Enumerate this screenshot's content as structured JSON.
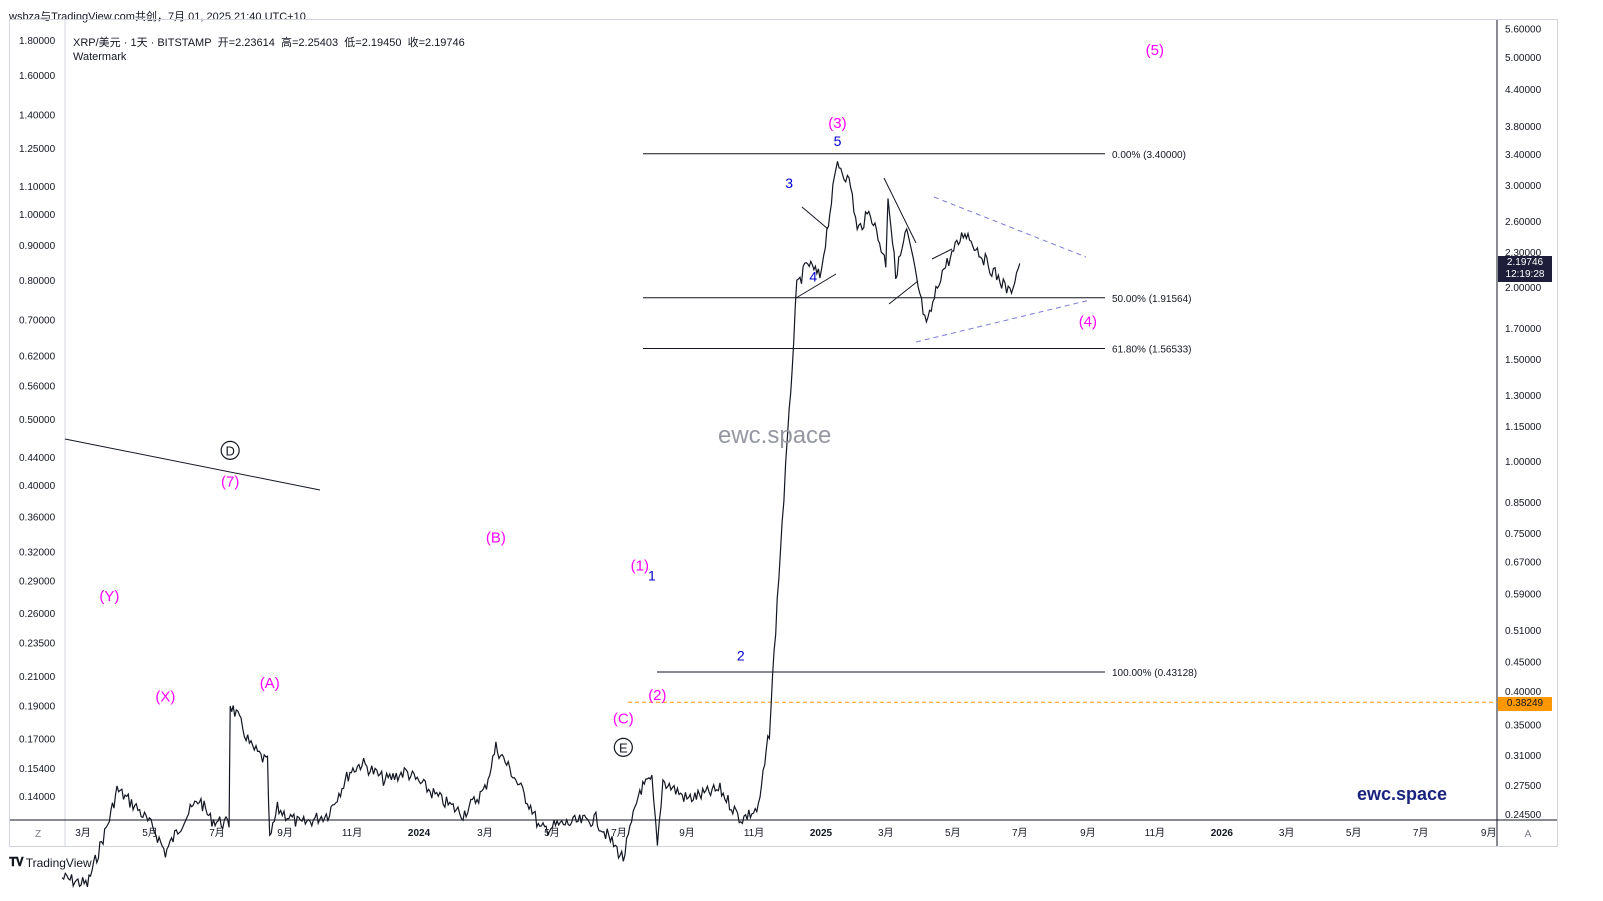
{
  "header": {
    "title": "wsbza与TradingView.com共创，7月 01, 2025 21:40 UTC+10"
  },
  "legend": {
    "symbol": "XRP/美元 · 1天 · BITSTAMP",
    "open": "开=2.23614",
    "high": "高=2.25403",
    "low": "低=2.19450",
    "close": "收=2.19746",
    "watermark_label": "Watermark"
  },
  "watermarks": {
    "center": "ewc.space",
    "corner": "ewc.space"
  },
  "footer": {
    "brand": "TradingView"
  },
  "colors": {
    "wave": "#ff00ff",
    "minor": "#0000cc",
    "price": "#131722",
    "level": "#ff9800",
    "triangle": "#7b7bd9"
  },
  "chart_data": {
    "type": "candlestick",
    "title": "",
    "y_scale": "log",
    "left_ticks": [
      "1.80000",
      "1.60000",
      "1.40000",
      "1.25000",
      "1.10000",
      "1.00000",
      "0.90000",
      "0.80000",
      "0.70000",
      "0.62000",
      "0.56000",
      "0.50000",
      "0.44000",
      "0.40000",
      "0.36000",
      "0.32000",
      "0.29000",
      "0.26000",
      "0.23500",
      "0.21000",
      "0.19000",
      "0.17000",
      "0.15400",
      "0.14000"
    ],
    "left_tick_values": [
      1.8,
      1.6,
      1.4,
      1.25,
      1.1,
      1.0,
      0.9,
      0.8,
      0.7,
      0.62,
      0.56,
      0.5,
      0.44,
      0.4,
      0.36,
      0.32,
      0.29,
      0.26,
      0.235,
      0.21,
      0.19,
      0.17,
      0.154,
      0.14
    ],
    "right_ticks": [
      "5.60000",
      "5.00000",
      "4.40000",
      "3.80000",
      "3.40000",
      "3.00000",
      "2.60000",
      "2.30000",
      "2.00000",
      "1.70000",
      "1.50000",
      "1.30000",
      "1.15000",
      "1.00000",
      "0.85000",
      "0.75000",
      "0.67000",
      "0.59000",
      "0.51000",
      "0.45000",
      "0.40000",
      "0.35000",
      "0.31000",
      "0.27500",
      "0.24500"
    ],
    "right_tick_values": [
      5.6,
      5.0,
      4.4,
      3.8,
      3.4,
      3.0,
      2.6,
      2.3,
      2.0,
      1.7,
      1.5,
      1.3,
      1.15,
      1.0,
      0.85,
      0.75,
      0.67,
      0.59,
      0.51,
      0.45,
      0.4,
      0.35,
      0.31,
      0.275,
      0.245
    ],
    "x_ticks": [
      "3月",
      "5月",
      "7月",
      "9月",
      "11月",
      "2024",
      "3月",
      "5月",
      "7月",
      "9月",
      "11月",
      "2025",
      "3月",
      "5月",
      "7月",
      "9月",
      "11月",
      "2026",
      "3月",
      "5月",
      "7月",
      "9月"
    ],
    "x_tick_dates": [
      "2023-03-01",
      "2023-05-01",
      "2023-07-01",
      "2023-09-01",
      "2023-11-01",
      "2024-01-01",
      "2024-03-01",
      "2024-05-01",
      "2024-07-01",
      "2024-09-01",
      "2024-11-01",
      "2025-01-01",
      "2025-03-01",
      "2025-05-01",
      "2025-07-01",
      "2025-09-01",
      "2025-11-01",
      "2026-01-01",
      "2026-03-01",
      "2026-05-01",
      "2026-07-01",
      "2026-09-01"
    ],
    "last_price": "2.19746",
    "countdown": "12:19:28",
    "level_price": "0.38249",
    "axis_buttons": {
      "left": "Z",
      "right": "A"
    },
    "fib_levels": [
      {
        "label": "0.00% (3.40000)",
        "value": 3.4
      },
      {
        "label": "50.00% (1.91564)",
        "value": 1.91564
      },
      {
        "label": "61.80% (1.56533)",
        "value": 1.56533
      },
      {
        "label": "100.00% (0.43128)",
        "value": 0.43128
      }
    ],
    "price_path": [
      {
        "date": "2023-02-10",
        "price": 0.19
      },
      {
        "date": "2023-03-05",
        "price": 0.185
      },
      {
        "date": "2023-03-25",
        "price": 0.24
      },
      {
        "date": "2023-04-01",
        "price": 0.27
      },
      {
        "date": "2023-04-20",
        "price": 0.25
      },
      {
        "date": "2023-05-05",
        "price": 0.23
      },
      {
        "date": "2023-05-15",
        "price": 0.21
      },
      {
        "date": "2023-06-01",
        "price": 0.24
      },
      {
        "date": "2023-06-15",
        "price": 0.26
      },
      {
        "date": "2023-06-25",
        "price": 0.24
      },
      {
        "date": "2023-07-12",
        "price": 0.235
      },
      {
        "date": "2023-07-13",
        "price": 0.38
      },
      {
        "date": "2023-07-20",
        "price": 0.36
      },
      {
        "date": "2023-08-01",
        "price": 0.32
      },
      {
        "date": "2023-08-16",
        "price": 0.3
      },
      {
        "date": "2023-08-18",
        "price": 0.22
      },
      {
        "date": "2023-08-25",
        "price": 0.25
      },
      {
        "date": "2023-09-15",
        "price": 0.235
      },
      {
        "date": "2023-10-10",
        "price": 0.245
      },
      {
        "date": "2023-10-30",
        "price": 0.29
      },
      {
        "date": "2023-11-10",
        "price": 0.3
      },
      {
        "date": "2023-12-01",
        "price": 0.28
      },
      {
        "date": "2023-12-20",
        "price": 0.29
      },
      {
        "date": "2024-01-20",
        "price": 0.26
      },
      {
        "date": "2024-02-10",
        "price": 0.245
      },
      {
        "date": "2024-03-01",
        "price": 0.27
      },
      {
        "date": "2024-03-11",
        "price": 0.32
      },
      {
        "date": "2024-03-25",
        "price": 0.29
      },
      {
        "date": "2024-04-13",
        "price": 0.25
      },
      {
        "date": "2024-04-20",
        "price": 0.23
      },
      {
        "date": "2024-05-10",
        "price": 0.235
      },
      {
        "date": "2024-06-10",
        "price": 0.24
      },
      {
        "date": "2024-07-05",
        "price": 0.205
      },
      {
        "date": "2024-07-20",
        "price": 0.27
      },
      {
        "date": "2024-07-31",
        "price": 0.28
      },
      {
        "date": "2024-08-05",
        "price": 0.215
      },
      {
        "date": "2024-08-10",
        "price": 0.28
      },
      {
        "date": "2024-09-01",
        "price": 0.26
      },
      {
        "date": "2024-10-01",
        "price": 0.27
      },
      {
        "date": "2024-10-20",
        "price": 0.24
      },
      {
        "date": "2024-11-05",
        "price": 0.25
      },
      {
        "date": "2024-11-15",
        "price": 0.34
      },
      {
        "date": "2024-11-25",
        "price": 0.7
      },
      {
        "date": "2024-12-03",
        "price": 1.2
      },
      {
        "date": "2024-12-10",
        "price": 2.0
      },
      {
        "date": "2024-12-20",
        "price": 2.2
      },
      {
        "date": "2024-12-31",
        "price": 2.08
      },
      {
        "date": "2025-01-05",
        "price": 2.4
      },
      {
        "date": "2025-01-16",
        "price": 3.3
      },
      {
        "date": "2025-01-28",
        "price": 3.0
      },
      {
        "date": "2025-02-03",
        "price": 2.5
      },
      {
        "date": "2025-02-15",
        "price": 2.7
      },
      {
        "date": "2025-03-01",
        "price": 2.2
      },
      {
        "date": "2025-03-03",
        "price": 2.9
      },
      {
        "date": "2025-03-10",
        "price": 2.1
      },
      {
        "date": "2025-03-20",
        "price": 2.5
      },
      {
        "date": "2025-04-07",
        "price": 1.7
      },
      {
        "date": "2025-04-20",
        "price": 2.1
      },
      {
        "date": "2025-05-12",
        "price": 2.5
      },
      {
        "date": "2025-06-01",
        "price": 2.2
      },
      {
        "date": "2025-06-22",
        "price": 1.95
      },
      {
        "date": "2025-07-01",
        "price": 2.19746
      }
    ],
    "wave_labels": [
      {
        "text": "(Y)",
        "date": "2023-03-25",
        "price": 0.275,
        "style": "major"
      },
      {
        "text": "(X)",
        "date": "2023-05-15",
        "price": 0.196,
        "style": "major"
      },
      {
        "text": "(7)",
        "date": "2023-07-13",
        "price": 0.405,
        "style": "major"
      },
      {
        "text": "D",
        "date": "2023-07-13",
        "price": 0.45,
        "style": "circle"
      },
      {
        "text": "(A)",
        "date": "2023-08-18",
        "price": 0.205,
        "style": "major"
      },
      {
        "text": "(B)",
        "date": "2024-03-11",
        "price": 0.335,
        "style": "major"
      },
      {
        "text": "(C)",
        "date": "2024-07-05",
        "price": 0.182,
        "style": "major"
      },
      {
        "text": "E",
        "date": "2024-07-05",
        "price": 0.165,
        "style": "circle"
      },
      {
        "text": "(1)",
        "date": "2024-07-20",
        "price": 0.305,
        "style": "major"
      },
      {
        "text": "1",
        "date": "2024-07-31",
        "price": 0.295,
        "style": "minor"
      },
      {
        "text": "(2)",
        "date": "2024-08-05",
        "price": 0.197,
        "style": "major"
      },
      {
        "text": "2",
        "date": "2024-10-20",
        "price": 0.225,
        "style": "minor"
      },
      {
        "text": "3",
        "date": "2024-12-03",
        "price": 1.11,
        "style": "minor"
      },
      {
        "text": "4",
        "date": "2024-12-25",
        "price": 0.81,
        "style": "minor"
      },
      {
        "text": "5",
        "date": "2025-01-16",
        "price": 1.28,
        "style": "minor"
      },
      {
        "text": "(3)",
        "date": "2025-01-16",
        "price": 1.36,
        "style": "major"
      },
      {
        "text": "(4)",
        "date": "2025-09-01",
        "price": 0.695,
        "style": "major"
      },
      {
        "text": "(5)",
        "date": "2025-11-01",
        "price": 1.74,
        "style": "major"
      }
    ]
  }
}
